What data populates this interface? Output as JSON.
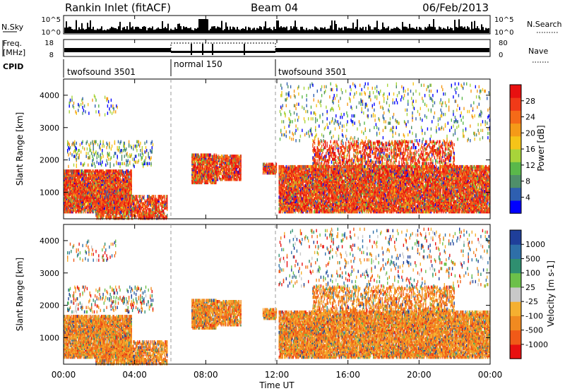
{
  "header": {
    "station": "Rankin Inlet (fitACF)",
    "beam": "Beam 04",
    "date": "06/Feb/2013"
  },
  "panels": {
    "nsky_label": "N.Sky",
    "nsearch_label": "N.Search",
    "freq_label_1": "Freq.",
    "freq_label_2": "[MHz]",
    "nave_label": "Nave",
    "cpid_label": "CPID",
    "nsky_ticks": [
      "10^5",
      "10^0"
    ],
    "freq_ticks": [
      "18",
      "8"
    ],
    "nave_ticks": [
      "80",
      "0"
    ],
    "cpid_segments": [
      {
        "label": "twofsound 3501",
        "start": 0,
        "end": 6
      },
      {
        "label": "normal 150",
        "start": 6,
        "end": 12
      },
      {
        "label": "twofsound 3501",
        "start": 12,
        "end": 24
      }
    ]
  },
  "chart_data": [
    {
      "type": "heatmap",
      "parameter": "power",
      "xlabel": "",
      "ylabel": "Slant Range [km]",
      "xlim": [
        0,
        24
      ],
      "ylim": [
        180,
        4500
      ],
      "y_ticks": [
        1000,
        2000,
        3000,
        4000
      ],
      "colorbar_label": "Power [dB]",
      "colorbar_ticks": [
        "4",
        "8",
        "12",
        "16",
        "20",
        "24",
        "28"
      ],
      "colorscale": [
        "#0000ff",
        "#2e5fb0",
        "#4f8f6a",
        "#5ab84a",
        "#a8d43a",
        "#f5c418",
        "#f59a18",
        "#f56a18",
        "#f03a18",
        "#e81010"
      ]
    },
    {
      "type": "heatmap",
      "parameter": "velocity",
      "xlabel": "Time UT",
      "ylabel": "Slant Range [km]",
      "xlim": [
        0,
        24
      ],
      "ylim": [
        180,
        4500
      ],
      "y_ticks": [
        1000,
        2000,
        3000,
        4000
      ],
      "x_ticks": [
        "00:00",
        "04:00",
        "08:00",
        "12:00",
        "16:00",
        "20:00",
        "00:00"
      ],
      "colorbar_label": "Velocity [m s-1]",
      "colorbar_ticks": [
        "1000",
        "500",
        "100",
        "25",
        "-25",
        "-100",
        "-500",
        "-1000"
      ],
      "colorscale": [
        "#1f3f9a",
        "#2e6fa8",
        "#2f8f70",
        "#6cc04a",
        "#c8c8c8",
        "#f5b030",
        "#f08a20",
        "#f05a18",
        "#e81010"
      ]
    }
  ]
}
